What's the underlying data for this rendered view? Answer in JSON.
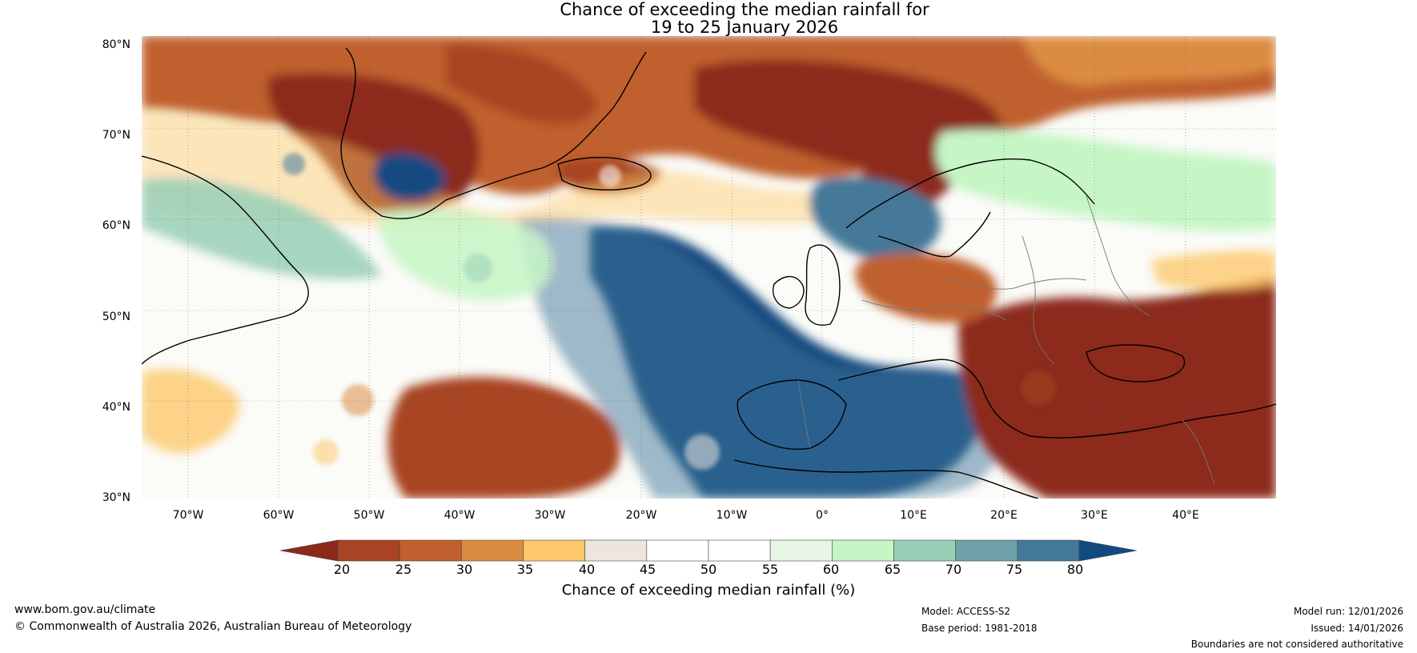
{
  "title": {
    "line1": "Chance of exceeding the median rainfall for",
    "line2": "19 to 25 January 2026"
  },
  "map": {
    "lat_labels": [
      "80°N",
      "70°N",
      "60°N",
      "50°N",
      "40°N",
      "30°N"
    ],
    "lon_labels": [
      "70°W",
      "60°W",
      "50°W",
      "40°W",
      "30°W",
      "20°W",
      "10°W",
      "0°",
      "10°E",
      "20°E",
      "30°E",
      "40°E"
    ],
    "region": {
      "lat_min": 30,
      "lat_max": 81,
      "lon_min": -75,
      "lon_max": 50
    }
  },
  "colorbar": {
    "ticks": [
      "20",
      "25",
      "30",
      "35",
      "40",
      "45",
      "50",
      "55",
      "60",
      "65",
      "70",
      "75",
      "80"
    ],
    "colors": [
      "#8c2a1a",
      "#a84424",
      "#c0602e",
      "#dc8c42",
      "#fdc96a",
      "#ede6df",
      "#ffffff",
      "#ffffff",
      "#e7f6e4",
      "#c6f6c6",
      "#98cfb6",
      "#6fa2a8",
      "#447899",
      "#124a80"
    ],
    "label": "Chance of exceeding median rainfall (%)"
  },
  "footer": {
    "website": "www.bom.gov.au/climate",
    "copyright": "© Commonwealth of Australia 2026, Australian Bureau of Meteorology",
    "model": "Model: ACCESS-S2",
    "base_period": "Base period: 1981-2018",
    "model_run": "Model run: 12/01/2026",
    "issued": "Issued: 14/01/2026",
    "disclaimer": "Boundaries are not considered authoritative"
  }
}
